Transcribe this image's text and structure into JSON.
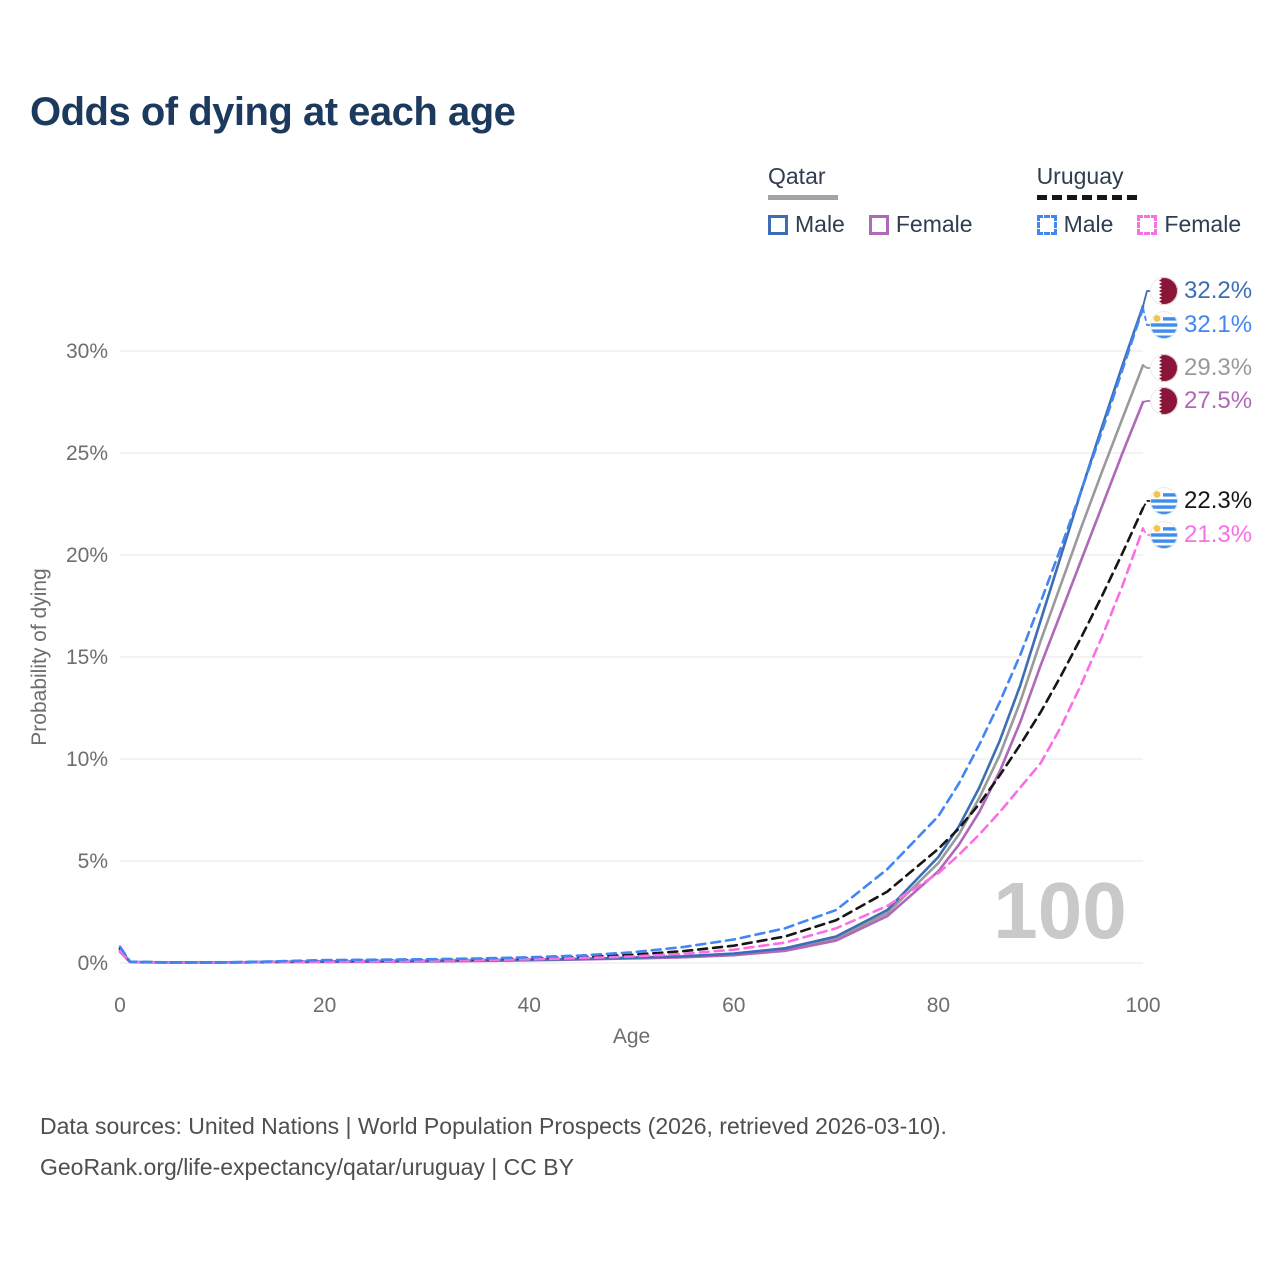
{
  "title": "Odds of dying at each age",
  "legend": {
    "groups": [
      {
        "label": "Qatar",
        "line_style": "solid",
        "line_color": "#9a9a9a",
        "items": [
          {
            "label": "Male"
          },
          {
            "label": "Female"
          }
        ]
      },
      {
        "label": "Uruguay",
        "line_style": "dashed",
        "line_color": "#161616",
        "items": [
          {
            "label": "Male"
          },
          {
            "label": "Female"
          }
        ]
      }
    ]
  },
  "chart_data": {
    "type": "line",
    "title": "Odds of dying at each age",
    "xlabel": "Age",
    "ylabel": "Probability of dying",
    "x_ticks": [
      "0",
      "20",
      "40",
      "60",
      "80",
      "100"
    ],
    "y_ticks": [
      "0%",
      "5%",
      "10%",
      "15%",
      "20%",
      "25%",
      "30%"
    ],
    "xlim": [
      0,
      100
    ],
    "ylim": [
      0,
      33
    ],
    "grid": "horizontal",
    "watermark": "100",
    "ages": [
      0,
      1,
      5,
      10,
      15,
      20,
      25,
      30,
      35,
      40,
      45,
      50,
      55,
      60,
      65,
      70,
      75,
      80,
      82,
      84,
      86,
      88,
      90,
      92,
      94,
      96,
      98,
      100
    ],
    "series": [
      {
        "name": "Qatar Male",
        "country": "Qatar",
        "sex": "Male",
        "style": "solid",
        "color": "#3d6eb5",
        "flag": "qatar",
        "end_label": "32.2%",
        "values": [
          0.65,
          0.05,
          0.03,
          0.03,
          0.05,
          0.08,
          0.1,
          0.11,
          0.13,
          0.16,
          0.2,
          0.26,
          0.33,
          0.46,
          0.72,
          1.3,
          2.6,
          5.2,
          6.7,
          8.6,
          10.9,
          13.6,
          16.8,
          20.0,
          23.2,
          26.3,
          29.3,
          32.2
        ]
      },
      {
        "name": "Uruguay Male",
        "country": "Uruguay",
        "sex": "Male",
        "style": "dashed",
        "color": "#4285f4",
        "flag": "uruguay",
        "end_label": "32.1%",
        "values": [
          0.8,
          0.06,
          0.03,
          0.03,
          0.08,
          0.14,
          0.16,
          0.18,
          0.22,
          0.28,
          0.37,
          0.52,
          0.78,
          1.15,
          1.7,
          2.6,
          4.6,
          7.2,
          8.8,
          10.7,
          12.8,
          15.1,
          17.7,
          20.4,
          23.2,
          26.1,
          29.1,
          32.1
        ]
      },
      {
        "name": "Qatar (both sexes)",
        "country": "Qatar",
        "sex": "Both",
        "style": "solid",
        "color": "#9a9a9a",
        "flag": "qatar",
        "end_label": "29.3%",
        "values": [
          0.6,
          0.05,
          0.03,
          0.03,
          0.05,
          0.07,
          0.08,
          0.1,
          0.12,
          0.15,
          0.19,
          0.24,
          0.3,
          0.42,
          0.66,
          1.2,
          2.45,
          4.9,
          6.3,
          8.1,
          10.2,
          12.8,
          15.8,
          18.6,
          21.4,
          24.1,
          26.7,
          29.3
        ]
      },
      {
        "name": "Qatar Female",
        "country": "Qatar",
        "sex": "Female",
        "style": "solid",
        "color": "#b069b8",
        "flag": "qatar",
        "end_label": "27.5%",
        "values": [
          0.55,
          0.04,
          0.02,
          0.02,
          0.04,
          0.05,
          0.06,
          0.08,
          0.1,
          0.13,
          0.17,
          0.22,
          0.28,
          0.38,
          0.6,
          1.1,
          2.3,
          4.5,
          5.8,
          7.4,
          9.4,
          11.8,
          14.6,
          17.2,
          19.8,
          22.4,
          25.0,
          27.5
        ]
      },
      {
        "name": "Uruguay (both sexes)",
        "country": "Uruguay",
        "sex": "Both",
        "style": "dashed",
        "color": "#161616",
        "flag": "uruguay",
        "end_label": "22.3%",
        "values": [
          0.7,
          0.05,
          0.03,
          0.03,
          0.06,
          0.1,
          0.12,
          0.14,
          0.17,
          0.22,
          0.29,
          0.4,
          0.58,
          0.85,
          1.3,
          2.1,
          3.5,
          5.6,
          6.6,
          7.8,
          9.2,
          10.7,
          12.3,
          14.1,
          16.0,
          18.0,
          20.1,
          22.3
        ]
      },
      {
        "name": "Uruguay Female",
        "country": "Uruguay",
        "sex": "Female",
        "style": "dashed",
        "color": "#fb6fe4",
        "flag": "uruguay",
        "end_label": "21.3%",
        "values": [
          0.6,
          0.04,
          0.02,
          0.02,
          0.04,
          0.07,
          0.09,
          0.11,
          0.14,
          0.18,
          0.24,
          0.32,
          0.45,
          0.65,
          1.0,
          1.7,
          2.8,
          4.4,
          5.3,
          6.3,
          7.4,
          8.6,
          9.8,
          11.6,
          13.7,
          16.0,
          18.5,
          21.3
        ]
      }
    ]
  },
  "colors": {
    "title": "#1c3a5e",
    "qatar_male": "#3d6eb5",
    "qatar_female": "#b069b8",
    "qatar_both": "#9a9a9a",
    "uruguay_male": "#4285f4",
    "uruguay_female": "#fb6fe4",
    "uruguay_both": "#161616",
    "qatar_flag_maroon": "#8a1538",
    "uruguay_flag_blue": "#3f8ceb",
    "uruguay_flag_sun": "#f7c345"
  },
  "footer": {
    "line1": "Data sources: United Nations | World Population Prospects (2026, retrieved 2026-03-10).",
    "line2": "GeoRank.org/life-expectancy/qatar/uruguay | CC BY"
  }
}
